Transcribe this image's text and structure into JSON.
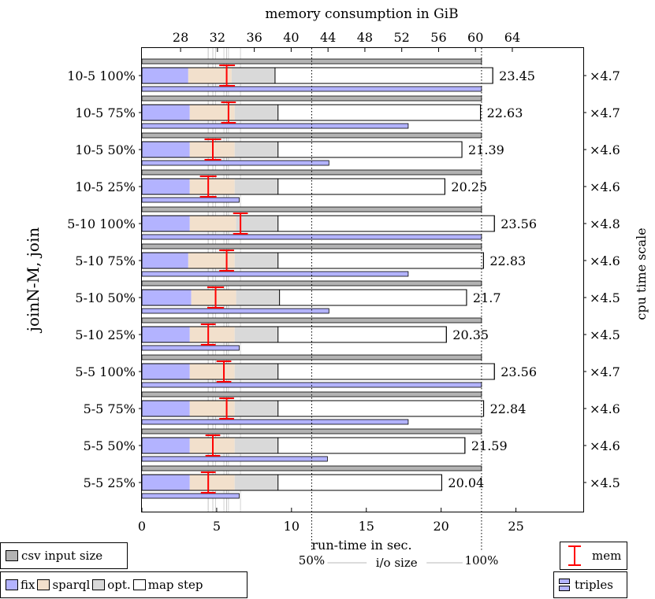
{
  "chart_data": {
    "type": "bar",
    "orientation": "horizontal",
    "title": "memory consumption in GiB",
    "xlabel": "run-time in sec.",
    "ylabel": "joinN-M, join",
    "y2label": "cpu time scale",
    "xlim": [
      0,
      29.5
    ],
    "xticks": [
      0,
      5,
      10,
      15,
      20,
      25
    ],
    "memory_axis": {
      "range": [
        23.8,
        71.7
      ],
      "ticks": [
        28,
        32,
        36,
        40,
        44,
        48,
        52,
        56,
        60,
        64
      ]
    },
    "categories": [
      "10-5 100%",
      "10-5 75%",
      "10-5 50%",
      "10-5 25%",
      "5-10 100%",
      "5-10 75%",
      "5-10 50%",
      "5-10 25%",
      "5-5 100%",
      "5-5 75%",
      "5-5 50%",
      "5-5 25%"
    ],
    "series": [
      {
        "name": "fix",
        "color": "#b3b3ff",
        "values": [
          3.1,
          3.2,
          3.2,
          3.2,
          3.2,
          3.1,
          3.3,
          3.2,
          3.2,
          3.2,
          3.2,
          3.2
        ]
      },
      {
        "name": "sparql",
        "color": "#f2e0cc",
        "values": [
          2.9,
          3.0,
          3.0,
          3.0,
          3.1,
          3.1,
          3.0,
          3.0,
          3.0,
          3.0,
          3.0,
          3.0
        ]
      },
      {
        "name": "opt.",
        "color": "#d9d9d9",
        "values": [
          2.9,
          2.9,
          2.9,
          2.9,
          2.8,
          2.9,
          2.9,
          2.9,
          2.9,
          2.9,
          2.9,
          2.9
        ]
      },
      {
        "name": "map step",
        "color": "#ffffff",
        "values": [
          14.55,
          13.53,
          12.29,
          11.15,
          14.46,
          13.73,
          12.5,
          11.25,
          14.46,
          13.74,
          12.49,
          10.94
        ]
      }
    ],
    "totals": [
      "23.45",
      "22.63",
      "21.39",
      "20.25",
      "23.56",
      "22.83",
      "21.7",
      "20.35",
      "23.56",
      "22.84",
      "21.59",
      "20.04"
    ],
    "cpu_scale": [
      "×4.7",
      "×4.7",
      "×4.6",
      "×4.6",
      "×4.8",
      "×4.6",
      "×4.5",
      "×4.5",
      "×4.7",
      "×4.6",
      "×4.6",
      "×4.5"
    ],
    "csv_input_size": {
      "name": "csv input size",
      "color": "#b3b3b3",
      "values": [
        22.7,
        22.7,
        22.7,
        22.7,
        22.7,
        22.7,
        22.7,
        22.7,
        22.7,
        22.7,
        22.7,
        22.7
      ]
    },
    "triples": {
      "name": "triples",
      "color": "#b3b3ff",
      "values": [
        22.7,
        17.8,
        12.5,
        6.5,
        22.7,
        17.8,
        12.5,
        6.5,
        22.7,
        17.8,
        12.4,
        6.5
      ]
    },
    "mem": {
      "name": "mem",
      "color": "#ff0000",
      "units": "GiB",
      "center": [
        33.0,
        33.2,
        31.5,
        31.0,
        34.5,
        33.0,
        31.8,
        31.0,
        32.7,
        33.0,
        31.5,
        31.0
      ],
      "low": [
        32.2,
        32.4,
        30.6,
        30.1,
        33.7,
        32.2,
        30.9,
        30.2,
        31.9,
        32.2,
        30.7,
        30.2
      ],
      "high": [
        33.9,
        34.0,
        32.4,
        31.9,
        35.3,
        33.8,
        32.7,
        31.8,
        33.5,
        33.8,
        32.3,
        31.8
      ]
    },
    "io_size": {
      "label": "i/o size",
      "markers": [
        {
          "label": "50%",
          "value": 11.35
        },
        {
          "label": "100%",
          "value": 22.7
        }
      ]
    },
    "legend_placement": "bottom"
  }
}
